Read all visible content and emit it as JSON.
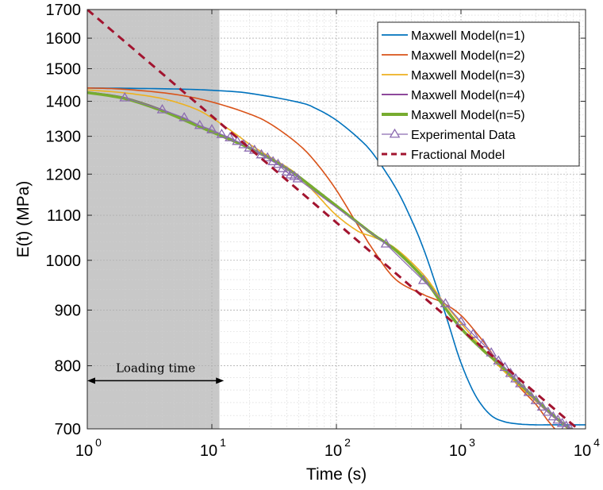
{
  "chart_data": {
    "type": "line",
    "xlabel": "Time (s)",
    "ylabel": "E(t) (MPa)",
    "x_scale": "log",
    "y_scale": "log",
    "xlim": [
      1,
      10000
    ],
    "ylim": [
      700,
      1700
    ],
    "x_ticks": [
      {
        "base": "10",
        "exp": "0",
        "value": 1
      },
      {
        "base": "10",
        "exp": "1",
        "value": 10
      },
      {
        "base": "10",
        "exp": "2",
        "value": 100
      },
      {
        "base": "10",
        "exp": "3",
        "value": 1000
      },
      {
        "base": "10",
        "exp": "4",
        "value": 10000
      }
    ],
    "y_ticks": [
      700,
      800,
      900,
      1000,
      1100,
      1200,
      1300,
      1400,
      1500,
      1600,
      1700
    ],
    "grid": true,
    "legend_position": "top-right",
    "loading_region": {
      "x_start": 1,
      "x_end": 11.5,
      "color": "#c8c8c8"
    },
    "annotation": {
      "text": "Loading time",
      "x_start": 1,
      "x_end": 12.5,
      "y": 775
    },
    "series": [
      {
        "name": "Maxwell Model(n=1)",
        "color": "#0072bd",
        "style": "solid",
        "x": [
          1,
          2,
          5,
          10,
          20,
          50,
          70,
          100,
          150,
          200,
          300,
          400,
          500,
          600,
          700,
          800,
          1000,
          1300,
          1700,
          2200,
          3000,
          4000,
          5000,
          7000,
          10000
        ],
        "y": [
          1440,
          1439,
          1437,
          1433,
          1424,
          1397,
          1377,
          1345,
          1295,
          1250,
          1165,
          1090,
          1025,
          965,
          915,
          872,
          805,
          752,
          722,
          711,
          707,
          706,
          706,
          706,
          706
        ]
      },
      {
        "name": "Maxwell Model(n=2)",
        "color": "#d95319",
        "style": "solid",
        "x": [
          1,
          2,
          5,
          10,
          20,
          30,
          50,
          70,
          100,
          150,
          200,
          300,
          500,
          700,
          1000,
          1500,
          2000,
          3000,
          4000,
          5000,
          6000
        ],
        "y": [
          1440,
          1436,
          1421,
          1398,
          1363,
          1333,
          1277,
          1226,
          1160,
          1075,
          1020,
          960,
          930,
          915,
          890,
          843,
          806,
          763,
          737,
          712,
          695
        ]
      },
      {
        "name": "Maxwell Model(n=3)",
        "color": "#edb120",
        "style": "solid",
        "x": [
          1,
          2,
          4,
          7,
          10,
          15,
          20,
          30,
          40,
          50,
          70,
          100,
          150,
          200,
          300,
          500,
          700,
          1000,
          1500,
          2000,
          3000,
          5000,
          7000,
          8000
        ],
        "y": [
          1434,
          1425,
          1408,
          1381,
          1352,
          1310,
          1279,
          1242,
          1218,
          1195,
          1148,
          1100,
          1063,
          1050,
          1025,
          970,
          920,
          875,
          830,
          800,
          765,
          725,
          702,
          695
        ]
      },
      {
        "name": "Maxwell Model(n=4)",
        "color": "#7e2f8e",
        "style": "solid",
        "x": [
          1,
          2,
          4,
          7,
          10,
          15,
          20,
          30,
          40,
          50,
          70,
          100,
          150,
          200,
          300,
          500,
          700,
          1000,
          1500,
          2000,
          3000,
          5000,
          7000,
          8000
        ],
        "y": [
          1428,
          1411,
          1375,
          1338,
          1313,
          1288,
          1270,
          1240,
          1215,
          1195,
          1160,
          1123,
          1083,
          1056,
          1022,
          965,
          915,
          868,
          828,
          805,
          770,
          728,
          705,
          698
        ]
      },
      {
        "name": "Maxwell Model(n=5)",
        "color": "#77ac30",
        "style": "solid-thick",
        "x": [
          1,
          2,
          4,
          7,
          10,
          15,
          20,
          30,
          40,
          50,
          70,
          100,
          150,
          200,
          300,
          500,
          700,
          1000,
          1500,
          2000,
          3000,
          5000,
          7000,
          8000
        ],
        "y": [
          1426,
          1408,
          1372,
          1335,
          1312,
          1287,
          1268,
          1238,
          1214,
          1193,
          1158,
          1122,
          1082,
          1055,
          1021,
          963,
          913,
          866,
          827,
          804,
          769,
          727,
          704,
          698
        ]
      },
      {
        "name": "Experimental Data",
        "color": "#8c6bb1",
        "style": "triangle-markers",
        "x": [
          2,
          4,
          6,
          8,
          10,
          12,
          14,
          16,
          18,
          20,
          22,
          25,
          28,
          31,
          34,
          37,
          40,
          43,
          46,
          49,
          250,
          500,
          750,
          1000,
          1250,
          1500,
          1750,
          2000,
          2250,
          2500,
          2750,
          3000,
          3500,
          4000,
          4500,
          5000,
          5500,
          6000,
          6500,
          7000,
          7500
        ],
        "y": [
          1410,
          1375,
          1352,
          1330,
          1318,
          1305,
          1296,
          1286,
          1277,
          1268,
          1262,
          1250,
          1242,
          1232,
          1225,
          1214,
          1205,
          1198,
          1194,
          1188,
          1035,
          958,
          912,
          878,
          855,
          838,
          822,
          808,
          797,
          787,
          778,
          770,
          756,
          743,
          733,
          725,
          718,
          713,
          708,
          704,
          700
        ]
      },
      {
        "name": "Fractional Model",
        "color": "#a2142f",
        "style": "dashed",
        "x": [
          1,
          10000
        ],
        "y": [
          1700,
          690
        ]
      }
    ]
  }
}
